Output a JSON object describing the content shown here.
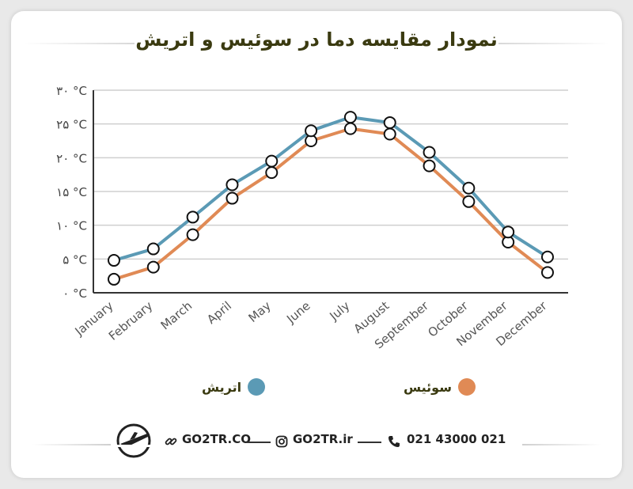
{
  "title": "نمودار مقایسه دما در سوئیس و اتریش",
  "chart_data": {
    "type": "line",
    "categories": [
      "January",
      "February",
      "March",
      "April",
      "May",
      "June",
      "July",
      "August",
      "September",
      "October",
      "November",
      "December"
    ],
    "y_ticks": [
      "۰ °C",
      "۵ °C",
      "۱۰ °C",
      "۱۵ °C",
      "۲۰ °C",
      "۲۵ °C",
      "۳۰ °C"
    ],
    "ylim": [
      0,
      30
    ],
    "grid": true,
    "series": [
      {
        "name": "اتریش",
        "color": "#5b9ab5",
        "values": [
          4.8,
          6.5,
          11.2,
          16,
          19.5,
          24,
          26,
          25.2,
          20.8,
          15.5,
          9,
          5.3
        ]
      },
      {
        "name": "سوئیس",
        "color": "#e08a55",
        "values": [
          2,
          3.8,
          8.6,
          14,
          17.8,
          22.5,
          24.3,
          23.5,
          18.8,
          13.5,
          7.5,
          3
        ]
      }
    ],
    "legend_position": "bottom"
  },
  "footer": {
    "site": "GO2TR.CO",
    "instagram": "GO2TR.ir",
    "phone": "021 43000 021"
  },
  "icons": [
    "logo-plane-icon",
    "link-icon",
    "instagram-icon",
    "phone-icon"
  ]
}
